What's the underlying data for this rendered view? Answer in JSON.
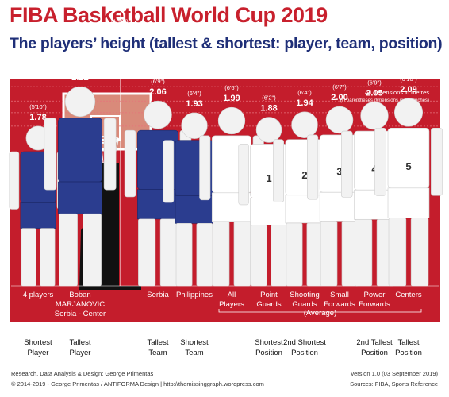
{
  "header": {
    "title": "FIBA Basketball World Cup 2019",
    "subtitle": "The players’ height (tallest & shortest: player, team, position)"
  },
  "notes": {
    "dimensions": "All dimensions in metres",
    "dimensions_sub": "(in parentheses dimensions in feet/inches)"
  },
  "hoop": {
    "height_m": "3.05",
    "height_ft": "(10'0\")"
  },
  "colors": {
    "background": "#c41d2c",
    "title": "#c8202d",
    "subtitle": "#1f2f78",
    "player_blue": "#2b3d8f",
    "player_white": "#ffffff"
  },
  "chart_data": {
    "type": "bar",
    "categories": [
      "4 players",
      "Boban MARJANOVIC Serbia - Center",
      "Serbia",
      "Philippines",
      "All Players",
      "Point Guards",
      "Shooting Guards",
      "Small Forwards",
      "Power Forwards",
      "Centers"
    ],
    "values": [
      1.78,
      2.22,
      2.06,
      1.93,
      1.99,
      1.88,
      1.94,
      2.0,
      2.05,
      2.09
    ],
    "items": [
      {
        "height": 1.78,
        "label": "1.78",
        "ft": "(5'10\")",
        "name_lines": [
          "4 players"
        ],
        "color": "blue",
        "number": "",
        "bottom": [
          "Shortest",
          "Player"
        ]
      },
      {
        "height": 2.22,
        "label": "2.22",
        "ft": "(7'3\")",
        "name_lines": [
          "Boban",
          "MARJANOVIC",
          "Serbia - Center"
        ],
        "color": "blue",
        "number": "",
        "bottom": [
          "Tallest",
          "Player"
        ]
      },
      {
        "height": 2.06,
        "label": "2.06",
        "ft": "(6'9\")",
        "name_lines": [
          "Serbia"
        ],
        "color": "blue",
        "number": "",
        "bottom": [
          "Tallest",
          "Team"
        ]
      },
      {
        "height": 1.93,
        "label": "1.93",
        "ft": "(6'4\")",
        "name_lines": [
          "Philippines"
        ],
        "color": "blue",
        "number": "",
        "bottom": [
          "Shortest",
          "Team"
        ]
      },
      {
        "height": 1.99,
        "label": "1.99",
        "ft": "(6'6\")",
        "name_lines": [
          "All",
          "Players"
        ],
        "color": "white",
        "number": "",
        "bottom": []
      },
      {
        "height": 1.88,
        "label": "1.88",
        "ft": "(6'2\")",
        "name_lines": [
          "Point",
          "Guards"
        ],
        "color": "white",
        "number": "1",
        "bottom": [
          "Shortest",
          "Position"
        ]
      },
      {
        "height": 1.94,
        "label": "1.94",
        "ft": "(6'4\")",
        "name_lines": [
          "Shooting",
          "Guards"
        ],
        "color": "white",
        "number": "2",
        "bottom": [
          "2nd Shortest",
          "Position"
        ]
      },
      {
        "height": 2.0,
        "label": "2.00",
        "ft": "(6'7\")",
        "name_lines": [
          "Small",
          "Forwards"
        ],
        "color": "white",
        "number": "3",
        "bottom": []
      },
      {
        "height": 2.05,
        "label": "2.05",
        "ft": "(6'9\")",
        "name_lines": [
          "Power",
          "Forwards"
        ],
        "color": "white",
        "number": "4",
        "bottom": [
          "2nd Tallest",
          "Position"
        ]
      },
      {
        "height": 2.09,
        "label": "2.09",
        "ft": "(6'10\")",
        "name_lines": [
          "Centers"
        ],
        "color": "white",
        "number": "5",
        "bottom": [
          "Tallest",
          "Position"
        ]
      }
    ],
    "average_label": "(Average)",
    "title": "FIBA Basketball World Cup 2019",
    "xlabel": "",
    "ylabel": "",
    "ylim": [
      0,
      3.05
    ]
  },
  "footer": {
    "left1": "Research, Data Analysis & Design: George Primentas",
    "left2": "© 2014-2019 - George Primentas / ANTIFORMA Design | http://themissinggraph.wordpress.com",
    "right1": "version 1.0 (03 September 2019)",
    "right2": "Sources: FIBA, Sports Reference"
  }
}
